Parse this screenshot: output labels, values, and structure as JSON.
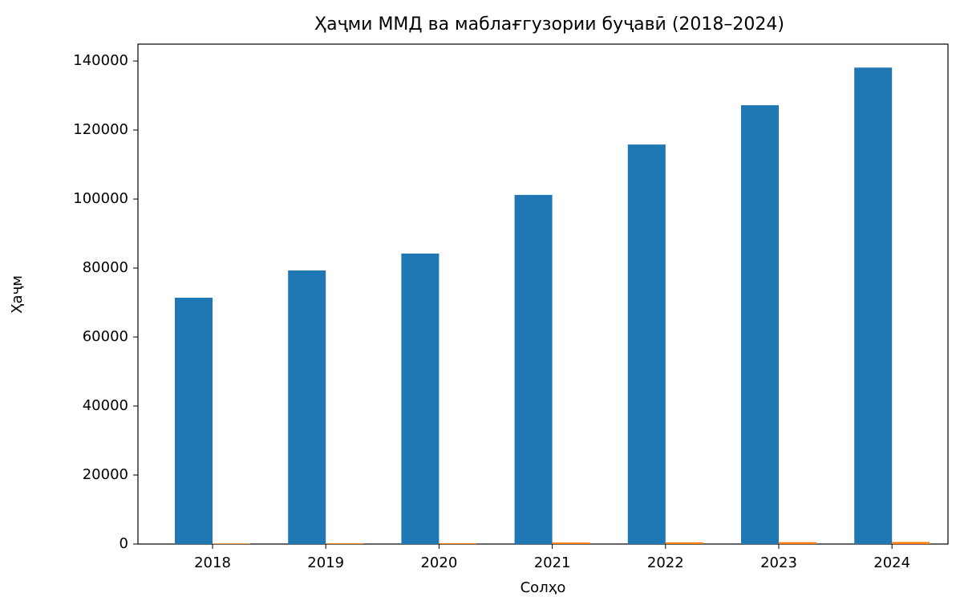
{
  "chart_data": {
    "type": "bar",
    "title": "Ҳаҷми ММД ва маблағгузории буҷавӣ (2018–2024)",
    "x_label": "Солҳо",
    "y_label": "Ҳаҷм",
    "categories": [
      "2018",
      "2019",
      "2020",
      "2021",
      "2022",
      "2023",
      "2024"
    ],
    "series": [
      {
        "color": "#1f77b4",
        "values": [
          71400,
          79300,
          84200,
          101200,
          115800,
          127200,
          138100
        ]
      },
      {
        "color": "#ff7f0e",
        "values": [
          150,
          200,
          250,
          450,
          500,
          550,
          600
        ]
      }
    ],
    "ylim": [
      0,
      144900
    ],
    "yticks": [
      0,
      20000,
      40000,
      60000,
      80000,
      100000,
      120000,
      140000
    ],
    "grid": false
  }
}
